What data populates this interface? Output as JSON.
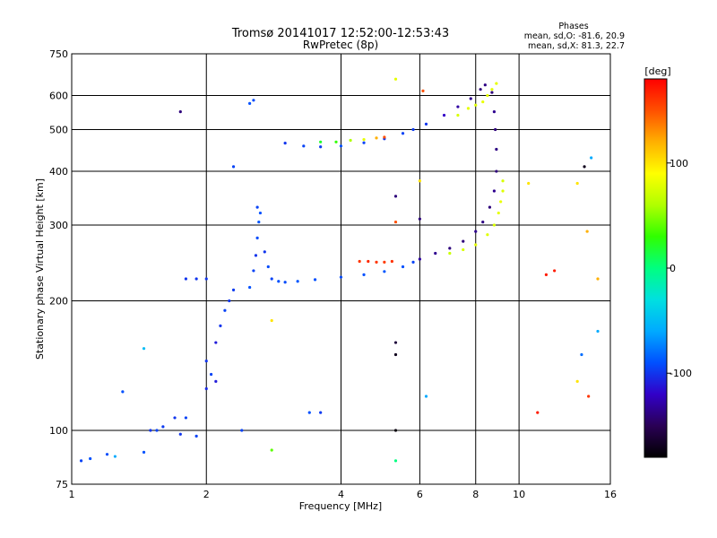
{
  "header": {
    "title": "Tromsø 20141017 12:52:00-12:53:43",
    "subtitle": "RwPretec (8p)"
  },
  "stats": {
    "heading": "Phases",
    "line_o": "mean, sd,O: -81.6, 20.9",
    "line_x": "mean, sd,X: 81.3, 22.7"
  },
  "colorbar": {
    "unit": "[deg]",
    "ticks": [
      "100",
      "0",
      "-100"
    ],
    "tick_values": [
      100,
      0,
      -100
    ],
    "range": [
      -180,
      180
    ],
    "colors": [
      "#000000",
      "#2a0055",
      "#3200c8",
      "#0050ff",
      "#00aaff",
      "#00e0e0",
      "#00ff80",
      "#30ff00",
      "#b0ff00",
      "#ffff00",
      "#ffb000",
      "#ff5000",
      "#ff0000"
    ]
  },
  "chart_data": {
    "type": "scatter",
    "xlabel": "Frequency [MHz]",
    "ylabel": "Stationary phase Virtual Height [km]",
    "x_scale": "log",
    "y_scale": "log",
    "xlim": [
      1,
      16
    ],
    "ylim": [
      75,
      750
    ],
    "x_ticks": [
      1,
      2,
      4,
      6,
      8,
      10,
      16
    ],
    "y_ticks": [
      75,
      100,
      200,
      300,
      400,
      500,
      600,
      750
    ],
    "x_gridlines": [
      2,
      4,
      6,
      8,
      10
    ],
    "y_gridlines": [
      100,
      200,
      300,
      400,
      500,
      600
    ],
    "series": [
      {
        "points": [
          [
            2.5,
            215
          ],
          [
            2.55,
            235
          ],
          [
            2.58,
            255
          ],
          [
            2.6,
            280
          ],
          [
            2.62,
            305
          ],
          [
            2.64,
            320
          ],
          [
            2.6,
            330
          ],
          [
            2.7,
            260
          ],
          [
            2.75,
            240
          ],
          [
            2.8,
            225
          ],
          [
            2.9,
            222
          ],
          [
            3.0,
            221
          ],
          [
            3.2,
            222
          ],
          [
            3.5,
            224
          ],
          [
            4.0,
            227
          ],
          [
            4.5,
            230
          ],
          [
            5.0,
            234
          ],
          [
            5.5,
            240
          ],
          [
            5.8,
            246
          ]
        ],
        "phases": [
          -90,
          -95,
          -100,
          -92,
          -88,
          -90,
          -95,
          -100,
          -92,
          -95,
          -90,
          -92,
          -88,
          -90,
          -92,
          -90,
          -88,
          -90,
          -95
        ]
      },
      {
        "points": [
          [
            4.4,
            247
          ],
          [
            4.6,
            247
          ],
          [
            4.8,
            246
          ],
          [
            5.0,
            246
          ],
          [
            5.2,
            247
          ]
        ],
        "phases": [
          160,
          165,
          160,
          158,
          162
        ]
      },
      {
        "points": [
          [
            6.0,
            250
          ],
          [
            6.5,
            258
          ],
          [
            7.0,
            265
          ],
          [
            7.5,
            275
          ],
          [
            8.0,
            290
          ],
          [
            8.3,
            305
          ],
          [
            8.6,
            330
          ],
          [
            8.8,
            360
          ],
          [
            8.9,
            400
          ],
          [
            8.9,
            450
          ],
          [
            8.85,
            500
          ],
          [
            8.8,
            550
          ],
          [
            8.7,
            610
          ]
        ],
        "phases": [
          -130,
          -135,
          -140,
          -140,
          -135,
          -138,
          -140,
          -135,
          -140,
          -138,
          -140,
          -135,
          -140
        ]
      },
      {
        "points": [
          [
            7.0,
            258
          ],
          [
            7.5,
            263
          ],
          [
            8.0,
            270
          ],
          [
            8.5,
            285
          ],
          [
            8.8,
            300
          ],
          [
            9.0,
            320
          ],
          [
            9.1,
            340
          ],
          [
            9.2,
            360
          ],
          [
            9.2,
            380
          ]
        ],
        "phases": [
          70,
          75,
          80,
          78,
          75,
          80,
          82,
          78,
          75
        ]
      },
      {
        "points": [
          [
            3.0,
            465
          ],
          [
            3.3,
            458
          ],
          [
            3.6,
            456
          ],
          [
            4.0,
            458
          ],
          [
            4.5,
            466
          ],
          [
            5.0,
            476
          ],
          [
            5.5,
            490
          ],
          [
            5.8,
            500
          ],
          [
            6.2,
            515
          ],
          [
            6.8,
            540
          ],
          [
            7.3,
            565
          ],
          [
            7.8,
            590
          ],
          [
            8.2,
            620
          ],
          [
            8.4,
            635
          ]
        ],
        "phases": [
          -100,
          -95,
          -98,
          -90,
          -95,
          -100,
          -95,
          -98,
          -100,
          -120,
          -130,
          -135,
          -140,
          -138
        ]
      },
      {
        "points": [
          [
            3.6,
            468
          ],
          [
            3.9,
            468
          ],
          [
            4.2,
            472
          ],
          [
            4.5,
            474
          ],
          [
            4.8,
            478
          ],
          [
            5.0,
            480
          ]
        ],
        "phases": [
          20,
          30,
          60,
          80,
          120,
          150
        ]
      },
      {
        "points": [
          [
            7.3,
            540
          ],
          [
            7.7,
            560
          ],
          [
            8.0,
            570
          ],
          [
            8.3,
            580
          ],
          [
            8.5,
            600
          ],
          [
            8.7,
            620
          ],
          [
            8.9,
            640
          ]
        ],
        "phases": [
          75,
          80,
          78,
          82,
          80,
          78,
          80
        ]
      },
      {
        "points": [
          [
            2.0,
            145
          ],
          [
            2.05,
            135
          ],
          [
            2.1,
            160
          ],
          [
            2.15,
            175
          ],
          [
            2.2,
            190
          ],
          [
            2.25,
            200
          ],
          [
            2.3,
            212
          ],
          [
            2.1,
            130
          ],
          [
            2.0,
            125
          ]
        ],
        "phases": [
          -100,
          -95,
          -110,
          -100,
          -95,
          -100,
          -98,
          -110,
          -105
        ]
      },
      {
        "points": [
          [
            1.8,
            225
          ],
          [
            1.9,
            225
          ],
          [
            2.0,
            225
          ]
        ],
        "phases": [
          -100,
          -100,
          -100
        ]
      },
      {
        "points": [
          [
            1.3,
            123
          ],
          [
            1.5,
            100
          ],
          [
            1.55,
            100
          ],
          [
            1.6,
            102
          ],
          [
            1.7,
            107
          ],
          [
            1.8,
            107
          ],
          [
            1.1,
            86
          ],
          [
            1.05,
            85
          ],
          [
            1.2,
            88
          ],
          [
            1.45,
            89
          ],
          [
            1.75,
            98
          ],
          [
            1.9,
            97
          ],
          [
            3.4,
            110
          ],
          [
            3.6,
            110
          ],
          [
            2.4,
            100
          ]
        ],
        "phases": [
          -90,
          -100,
          -95,
          -98,
          -100,
          -95,
          -90,
          -95,
          -92,
          -90,
          -100,
          -95,
          -90,
          -98,
          -95
        ]
      },
      {
        "points": [
          [
            2.3,
            410
          ],
          [
            2.5,
            575
          ],
          [
            2.55,
            585
          ],
          [
            1.75,
            550
          ]
        ],
        "phases": [
          -95,
          -90,
          -92,
          -140
        ]
      },
      {
        "points": [
          [
            5.3,
            655
          ],
          [
            6.1,
            615
          ],
          [
            5.3,
            350
          ],
          [
            5.3,
            305
          ],
          [
            5.3,
            160
          ],
          [
            5.3,
            150
          ],
          [
            5.3,
            100
          ],
          [
            5.3,
            85
          ],
          [
            6.0,
            380
          ],
          [
            6.0,
            310
          ],
          [
            6.2,
            120
          ],
          [
            11.5,
            230
          ],
          [
            12.0,
            235
          ],
          [
            14.5,
            430
          ],
          [
            14.2,
            290
          ],
          [
            14.3,
            120
          ],
          [
            15.0,
            225
          ],
          [
            15.0,
            170
          ],
          [
            11.0,
            110
          ],
          [
            13.5,
            130
          ],
          [
            13.8,
            150
          ],
          [
            13.5,
            375
          ],
          [
            14.0,
            410
          ],
          [
            10.5,
            375
          ],
          [
            2.8,
            180
          ],
          [
            2.8,
            90
          ],
          [
            1.45,
            155
          ],
          [
            1.25,
            87
          ]
        ],
        "phases": [
          80,
          150,
          -140,
          150,
          -160,
          -170,
          -175,
          0,
          100,
          -140,
          -60,
          170,
          170,
          -60,
          120,
          160,
          120,
          -60,
          170,
          100,
          -80,
          100,
          -170,
          100,
          100,
          40,
          -50,
          -60
        ]
      }
    ]
  }
}
